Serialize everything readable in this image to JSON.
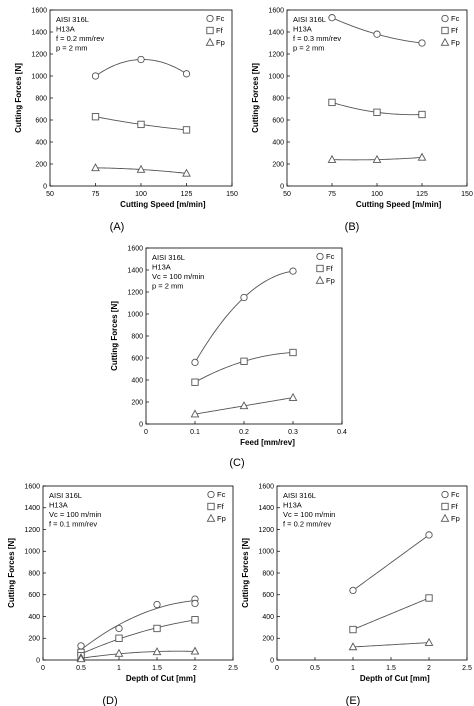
{
  "chart_data": [
    {
      "type": "line",
      "panel_label": "(A)",
      "xlabel": "Cutting Speed [m/min]",
      "ylabel": "Cutting Forces [N]",
      "xlim": [
        50,
        150
      ],
      "ylim": [
        0,
        1600
      ],
      "xticks": [
        50,
        75,
        100,
        125,
        150
      ],
      "yticks": [
        0,
        200,
        400,
        600,
        800,
        1000,
        1200,
        1400,
        1600
      ],
      "annotation": [
        "AISI 316L",
        "H13A",
        "f = 0.2 mm/rev",
        "p = 2 mm"
      ],
      "legend_position": "top-right",
      "grid": false,
      "series": [
        {
          "name": "Fc",
          "marker": "circle",
          "curve": "quadratic",
          "x": [
            75,
            100,
            125
          ],
          "y": [
            1000,
            1150,
            1020
          ]
        },
        {
          "name": "Ff",
          "marker": "square",
          "curve": "quadratic",
          "x": [
            75,
            100,
            125
          ],
          "y": [
            630,
            560,
            510
          ]
        },
        {
          "name": "Fp",
          "marker": "triangle",
          "curve": "quadratic",
          "x": [
            75,
            100,
            125
          ],
          "y": [
            165,
            150,
            115
          ]
        }
      ]
    },
    {
      "type": "line",
      "panel_label": "(B)",
      "xlabel": "Cutting Speed [m/min]",
      "ylabel": "Cutting Forces [N]",
      "xlim": [
        50,
        150
      ],
      "ylim": [
        0,
        1600
      ],
      "xticks": [
        50,
        75,
        100,
        125,
        150
      ],
      "yticks": [
        0,
        200,
        400,
        600,
        800,
        1000,
        1200,
        1400,
        1600
      ],
      "annotation": [
        "AISI 316L",
        "H13A",
        "f = 0.3 mm/rev",
        "p = 2 mm"
      ],
      "legend_position": "top-right",
      "grid": false,
      "series": [
        {
          "name": "Fc",
          "marker": "circle",
          "curve": "quadratic",
          "x": [
            75,
            100,
            125
          ],
          "y": [
            1530,
            1380,
            1300
          ]
        },
        {
          "name": "Ff",
          "marker": "square",
          "curve": "quadratic",
          "x": [
            75,
            100,
            125
          ],
          "y": [
            760,
            670,
            650
          ]
        },
        {
          "name": "Fp",
          "marker": "triangle",
          "curve": "quadratic",
          "x": [
            75,
            100,
            125
          ],
          "y": [
            240,
            240,
            260
          ]
        }
      ]
    },
    {
      "type": "line",
      "panel_label": "(C)",
      "xlabel": "Feed [mm/rev]",
      "ylabel": "Cutting Forces [N]",
      "xlim": [
        0,
        0.4
      ],
      "ylim": [
        0,
        1600
      ],
      "xticks": [
        0,
        0.1,
        0.2,
        0.3,
        0.4
      ],
      "yticks": [
        0,
        200,
        400,
        600,
        800,
        1000,
        1200,
        1400,
        1600
      ],
      "annotation": [
        "AISI 316L",
        "H13A",
        "Vc = 100 m/min",
        "p = 2 mm"
      ],
      "legend_position": "top-right",
      "grid": false,
      "series": [
        {
          "name": "Fc",
          "marker": "circle",
          "curve": "quadratic",
          "x": [
            0.1,
            0.2,
            0.3
          ],
          "y": [
            560,
            1150,
            1390
          ]
        },
        {
          "name": "Ff",
          "marker": "square",
          "curve": "quadratic",
          "x": [
            0.1,
            0.2,
            0.3
          ],
          "y": [
            380,
            570,
            650
          ]
        },
        {
          "name": "Fp",
          "marker": "triangle",
          "curve": "quadratic",
          "x": [
            0.1,
            0.2,
            0.3
          ],
          "y": [
            90,
            165,
            240
          ]
        }
      ]
    },
    {
      "type": "line",
      "panel_label": "(D)",
      "xlabel": "Depth of Cut [mm]",
      "ylabel": "Cutting Forces [N]",
      "xlim": [
        0,
        2.5
      ],
      "ylim": [
        0,
        1600
      ],
      "xticks": [
        0,
        0.5,
        1,
        1.5,
        2,
        2.5
      ],
      "yticks": [
        0,
        200,
        400,
        600,
        800,
        1000,
        1200,
        1400,
        1600
      ],
      "annotation": [
        "AISI 316L",
        "H13A",
        "Vc = 100 m/min",
        "f = 0.1 mm/rev"
      ],
      "legend_position": "top-right",
      "grid": false,
      "series": [
        {
          "name": "Fc",
          "marker": "circle",
          "curve": "quadratic",
          "x": [
            0.5,
            0.5,
            1,
            1.5,
            2,
            2
          ],
          "y": [
            130,
            70,
            290,
            510,
            560,
            520
          ]
        },
        {
          "name": "Ff",
          "marker": "square",
          "curve": "quadratic",
          "x": [
            0.5,
            0.5,
            1,
            1.5,
            2
          ],
          "y": [
            70,
            40,
            200,
            290,
            370
          ]
        },
        {
          "name": "Fp",
          "marker": "triangle",
          "curve": "quadratic",
          "x": [
            0.5,
            0.5,
            1,
            1.5,
            2
          ],
          "y": [
            20,
            10,
            60,
            75,
            80
          ]
        }
      ]
    },
    {
      "type": "line",
      "panel_label": "(E)",
      "xlabel": "Depth of Cut [mm]",
      "ylabel": "Cutting Forces [N]",
      "xlim": [
        0,
        2.5
      ],
      "ylim": [
        0,
        1600
      ],
      "xticks": [
        0,
        0.5,
        1,
        1.5,
        2,
        2.5
      ],
      "yticks": [
        0,
        200,
        400,
        600,
        800,
        1000,
        1200,
        1400,
        1600
      ],
      "annotation": [
        "AISI 316L",
        "H13A",
        "Vc = 100 m/min",
        "f = 0.2 mm/rev"
      ],
      "legend_position": "top-right",
      "grid": false,
      "series": [
        {
          "name": "Fc",
          "marker": "circle",
          "curve": "linear",
          "x": [
            1,
            2
          ],
          "y": [
            640,
            1150
          ]
        },
        {
          "name": "Ff",
          "marker": "square",
          "curve": "linear",
          "x": [
            1,
            2
          ],
          "y": [
            280,
            570
          ]
        },
        {
          "name": "Fp",
          "marker": "triangle",
          "curve": "linear",
          "x": [
            1,
            2
          ],
          "y": [
            120,
            160
          ]
        }
      ]
    }
  ]
}
